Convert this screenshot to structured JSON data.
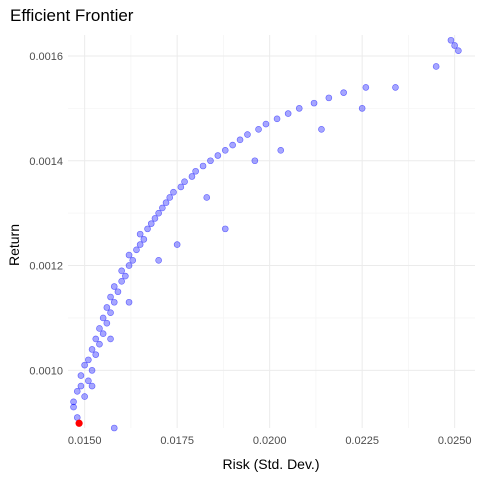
{
  "chart_data": {
    "type": "scatter",
    "title": "Efficient Frontier",
    "xlabel": "Risk (Std. Dev.)",
    "ylabel": "Return",
    "xlim": [
      0.01455,
      0.02555
    ],
    "ylim": [
      0.00089,
      0.00164
    ],
    "x_ticks": [
      0.015,
      0.0175,
      0.02,
      0.0225,
      0.025
    ],
    "x_tick_labels": [
      "0.0150",
      "0.0175",
      "0.0200",
      "0.0225",
      "0.0250"
    ],
    "y_ticks": [
      0.001,
      0.0012,
      0.0014,
      0.0016
    ],
    "y_tick_labels": [
      "0.0010",
      "0.0012",
      "0.0014",
      "0.0016"
    ],
    "grid": true,
    "legend": "none",
    "series": [
      {
        "marker_color": "#0000ff",
        "points": [
          [
            0.0147,
            0.00093
          ],
          [
            0.0148,
            0.00091
          ],
          [
            0.0147,
            0.00094
          ],
          [
            0.0148,
            0.00096
          ],
          [
            0.0149,
            0.00097
          ],
          [
            0.015,
            0.00095
          ],
          [
            0.0149,
            0.00099
          ],
          [
            0.0151,
            0.00098
          ],
          [
            0.015,
            0.00101
          ],
          [
            0.0151,
            0.00102
          ],
          [
            0.0152,
            0.001
          ],
          [
            0.0152,
            0.00104
          ],
          [
            0.0153,
            0.00103
          ],
          [
            0.0153,
            0.00106
          ],
          [
            0.0154,
            0.00105
          ],
          [
            0.0154,
            0.00108
          ],
          [
            0.0155,
            0.00107
          ],
          [
            0.0155,
            0.0011
          ],
          [
            0.0156,
            0.00109
          ],
          [
            0.0156,
            0.00112
          ],
          [
            0.0157,
            0.00111
          ],
          [
            0.0157,
            0.00114
          ],
          [
            0.0158,
            0.00113
          ],
          [
            0.0158,
            0.00116
          ],
          [
            0.0159,
            0.00115
          ],
          [
            0.016,
            0.00117
          ],
          [
            0.016,
            0.00119
          ],
          [
            0.0161,
            0.00118
          ],
          [
            0.0162,
            0.0012
          ],
          [
            0.0162,
            0.00122
          ],
          [
            0.0163,
            0.00121
          ],
          [
            0.0164,
            0.00123
          ],
          [
            0.0165,
            0.00124
          ],
          [
            0.0165,
            0.00126
          ],
          [
            0.0166,
            0.00125
          ],
          [
            0.0167,
            0.00127
          ],
          [
            0.0168,
            0.00128
          ],
          [
            0.0169,
            0.00129
          ],
          [
            0.017,
            0.0013
          ],
          [
            0.0171,
            0.00131
          ],
          [
            0.0172,
            0.00132
          ],
          [
            0.0173,
            0.00133
          ],
          [
            0.0174,
            0.00134
          ],
          [
            0.0176,
            0.00135
          ],
          [
            0.0177,
            0.00136
          ],
          [
            0.0179,
            0.00137
          ],
          [
            0.018,
            0.00138
          ],
          [
            0.0182,
            0.00139
          ],
          [
            0.0184,
            0.0014
          ],
          [
            0.0186,
            0.00141
          ],
          [
            0.0188,
            0.00142
          ],
          [
            0.019,
            0.00143
          ],
          [
            0.0192,
            0.00144
          ],
          [
            0.0194,
            0.00145
          ],
          [
            0.0197,
            0.00146
          ],
          [
            0.0199,
            0.00147
          ],
          [
            0.0202,
            0.00148
          ],
          [
            0.0205,
            0.00149
          ],
          [
            0.0208,
            0.0015
          ],
          [
            0.0212,
            0.00151
          ],
          [
            0.0216,
            0.00152
          ],
          [
            0.022,
            0.00153
          ],
          [
            0.0226,
            0.00154
          ],
          [
            0.0234,
            0.00154
          ],
          [
            0.0245,
            0.00158
          ],
          [
            0.0249,
            0.00163
          ],
          [
            0.025,
            0.00162
          ],
          [
            0.0251,
            0.00161
          ],
          [
            0.0158,
            0.00089
          ],
          [
            0.0175,
            0.00124
          ],
          [
            0.0188,
            0.00127
          ],
          [
            0.0203,
            0.00142
          ],
          [
            0.0214,
            0.00146
          ],
          [
            0.0225,
            0.0015
          ],
          [
            0.0196,
            0.0014
          ],
          [
            0.0183,
            0.00133
          ],
          [
            0.017,
            0.00121
          ],
          [
            0.0162,
            0.00113
          ],
          [
            0.0157,
            0.00106
          ],
          [
            0.0152,
            0.00097
          ]
        ]
      }
    ],
    "highlight_point": {
      "x": 0.01485,
      "y": 0.000899,
      "color": "#ff0000"
    }
  }
}
